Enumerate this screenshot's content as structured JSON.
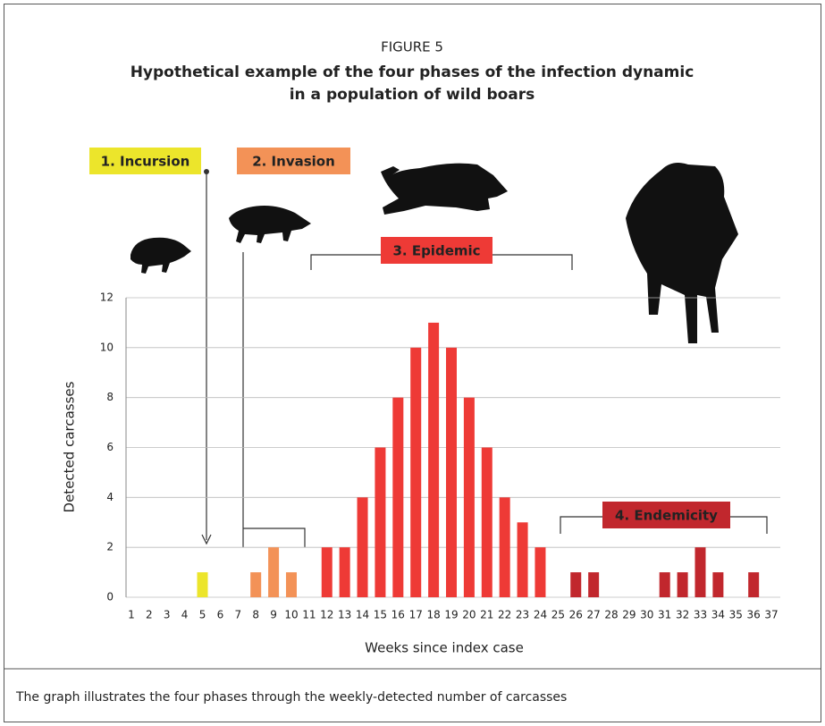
{
  "chart_data": {
    "type": "bar",
    "figure_label": "FIGURE 5",
    "title": [
      "Hypothetical example of the four phases of the infection dynamic",
      "in a population of wild boars"
    ],
    "x_label": "Weeks since index case",
    "y_label": "Detected carcasses",
    "caption": "The graph illustrates the four phases through the weekly-detected number of carcasses",
    "categories": [
      "1",
      "2",
      "3",
      "4",
      "5",
      "6",
      "7",
      "8",
      "9",
      "10",
      "11",
      "12",
      "13",
      "14",
      "15",
      "16",
      "17",
      "18",
      "19",
      "20",
      "21",
      "22",
      "23",
      "24",
      "25",
      "26",
      "27",
      "28",
      "29",
      "30",
      "31",
      "32",
      "33",
      "34",
      "35",
      "36",
      "37"
    ],
    "series": [
      {
        "name": "1. Incursion",
        "color": "#ece52b",
        "values": [
          0,
          0,
          0,
          0,
          1,
          0,
          0,
          null,
          null,
          null,
          null,
          null,
          null,
          null,
          null,
          null,
          null,
          null,
          null,
          null,
          null,
          null,
          null,
          null,
          null,
          null,
          null,
          null,
          null,
          null,
          null,
          null,
          null,
          null,
          null,
          null,
          null
        ]
      },
      {
        "name": "2. Invasion",
        "color": "#f39257",
        "values": [
          null,
          null,
          null,
          null,
          null,
          null,
          null,
          1,
          2,
          1,
          0,
          null,
          null,
          null,
          null,
          null,
          null,
          null,
          null,
          null,
          null,
          null,
          null,
          null,
          null,
          null,
          null,
          null,
          null,
          null,
          null,
          null,
          null,
          null,
          null,
          null,
          null
        ]
      },
      {
        "name": "3. Epidemic",
        "color": "#ee3a36",
        "values": [
          null,
          null,
          null,
          null,
          null,
          null,
          null,
          null,
          null,
          null,
          null,
          2,
          2,
          4,
          6,
          8,
          10,
          11,
          10,
          8,
          6,
          4,
          3,
          2,
          0,
          null,
          null,
          null,
          null,
          null,
          null,
          null,
          null,
          null,
          null,
          null,
          null
        ]
      },
      {
        "name": "4. Endemicity",
        "color": "#c1272d",
        "values": [
          null,
          null,
          null,
          null,
          null,
          null,
          null,
          null,
          null,
          null,
          null,
          null,
          null,
          null,
          null,
          null,
          null,
          null,
          null,
          null,
          null,
          null,
          null,
          null,
          null,
          1,
          1,
          0,
          0,
          0,
          1,
          1,
          2,
          1,
          0,
          1,
          0
        ]
      }
    ],
    "ylim": [
      0,
      12
    ],
    "yticks": [
      0,
      2,
      4,
      6,
      8,
      10,
      12
    ],
    "grid": true
  }
}
